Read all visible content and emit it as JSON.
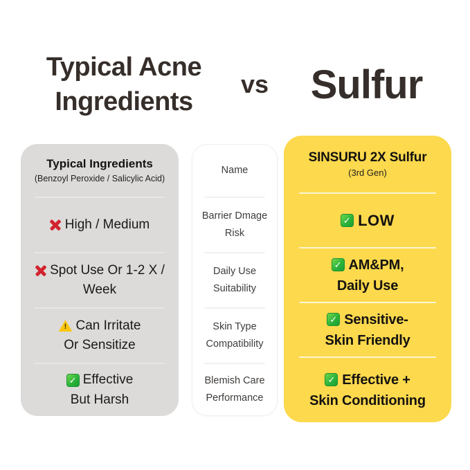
{
  "title": {
    "left_line1": "Typical Acne",
    "left_line2": "Ingredients",
    "vs": "vs",
    "right": "Sulfur"
  },
  "typical_card": {
    "title": "Typical Ingredients",
    "subtitle": "(Benzoyl Peroxide / Salicylic Acid)",
    "rows": [
      {
        "icon": "red-x-icon",
        "line1": "High / Medium",
        "line2": ""
      },
      {
        "icon": "red-x-icon",
        "line1": "Spot Use Or 1-2 X /",
        "line2": "Week"
      },
      {
        "icon": "warning-triangle-icon",
        "line1": "Can Irritate",
        "line2": "Or Sensitize"
      },
      {
        "icon": "green-check-icon",
        "line1": "Effective",
        "line2": "But Harsh"
      }
    ]
  },
  "labels_card": {
    "rows": [
      {
        "line1": "Name",
        "line2": ""
      },
      {
        "line1": "Barrier Dmage",
        "line2": "Risk"
      },
      {
        "line1": "Daily Use",
        "line2": "Suitability"
      },
      {
        "line1": "Skin Type",
        "line2": "Compatibility"
      },
      {
        "line1": "Blemish Care",
        "line2": "Performance"
      }
    ]
  },
  "product_card": {
    "title": "SINSURU 2X Sulfur",
    "subtitle": "(3rd Gen)",
    "rows": [
      {
        "icon": "green-check-icon",
        "line1": "LOW",
        "line2": ""
      },
      {
        "icon": "green-check-icon",
        "line1": "AM&PM,",
        "line2": "Daily Use"
      },
      {
        "icon": "green-check-icon",
        "line1": "Sensitive-",
        "line2": "Skin Friendly"
      },
      {
        "icon": "green-check-icon",
        "line1": "Effective +",
        "line2": "Skin Conditioning"
      }
    ]
  },
  "icons": {
    "check_glyph": "✓",
    "warning_glyph": "!"
  },
  "colors": {
    "heading_text": "#362e2a",
    "gray_card": "#dcdbd9",
    "yellow_card": "#fcd94d",
    "red_x": "#d2232e",
    "warning_yellow": "#ffc60d",
    "check_green": "#1ea52f"
  }
}
